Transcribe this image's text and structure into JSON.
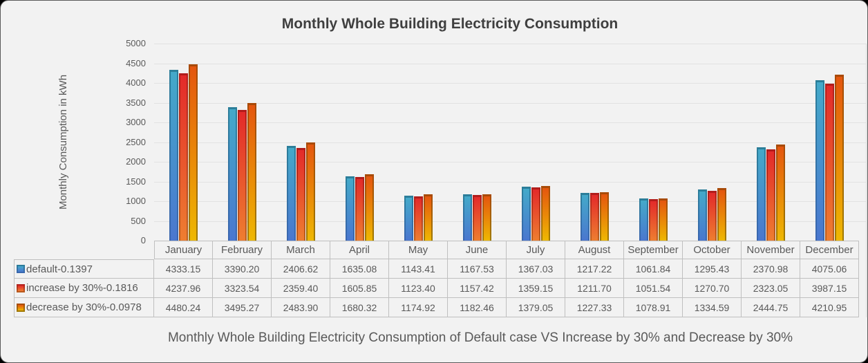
{
  "colors": {
    "background": "#f2f2f2",
    "gridline": "#e2e2e2",
    "axis_text": "#595959",
    "title_text": "#3f3f3f",
    "table_border": "#bfbfbf"
  },
  "chart_data": {
    "type": "bar",
    "title": "Monthly Whole Building Electricity Consumption",
    "ylabel": "Monthly Consumption in kWh",
    "xlabel": "",
    "caption": "Monthly Whole Building Electricity Consumption of Default case VS Increase by 30% and Decrease by 30%",
    "ylim": [
      0,
      5000
    ],
    "ytick_step": 500,
    "yticks": [
      5000,
      4500,
      4000,
      3500,
      3000,
      2500,
      2000,
      1500,
      1000,
      500,
      0
    ],
    "grid": true,
    "legend_position": "data-table-left",
    "value_format_decimals": 2,
    "categories": [
      "January",
      "February",
      "March",
      "April",
      "May",
      "June",
      "July",
      "August",
      "September",
      "October",
      "November",
      "December"
    ],
    "series": [
      {
        "name": "default-0.1397",
        "values": [
          4333.15,
          3390.2,
          2406.62,
          1635.08,
          1143.41,
          1167.53,
          1367.03,
          1217.22,
          1061.84,
          1295.43,
          2370.98,
          4075.06
        ],
        "fill_top": "#44a9c9",
        "fill_bottom": "#4a77cf",
        "edge_top": "#2b7e99",
        "edge_bottom": "#3a66b0"
      },
      {
        "name": "increase by 30%-0.1816",
        "values": [
          4237.96,
          3323.54,
          2359.4,
          1605.85,
          1123.4,
          1157.42,
          1359.15,
          1211.7,
          1051.54,
          1270.7,
          2323.05,
          3987.15
        ],
        "fill_top": "#e32a2a",
        "fill_bottom": "#ee7e30",
        "edge_top": "#b11b1b",
        "edge_bottom": "#b9601f"
      },
      {
        "name": "decrease by 30%-0.0978",
        "values": [
          4480.24,
          3495.27,
          2483.9,
          1680.32,
          1174.92,
          1182.46,
          1379.05,
          1227.33,
          1078.91,
          1334.59,
          2444.75,
          4210.95
        ],
        "fill_top": "#e4560f",
        "fill_bottom": "#eeb802",
        "edge_top": "#a84a08",
        "edge_bottom": "#a07b00"
      }
    ]
  }
}
